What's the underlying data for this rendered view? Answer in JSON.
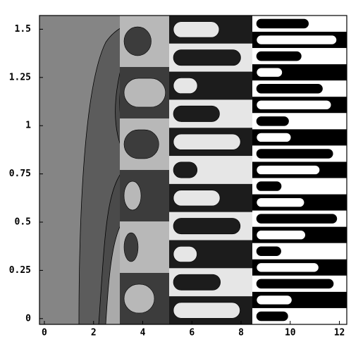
{
  "chart_data": {
    "type": "contour",
    "xlim": [
      -0.2,
      12.3
    ],
    "ylim": [
      -0.03,
      1.571
    ],
    "xticks": [
      0,
      2,
      4,
      6,
      8,
      10,
      12
    ],
    "yticks": [
      0,
      0.25,
      0.5,
      0.75,
      1,
      1.25,
      1.5
    ]
  }
}
